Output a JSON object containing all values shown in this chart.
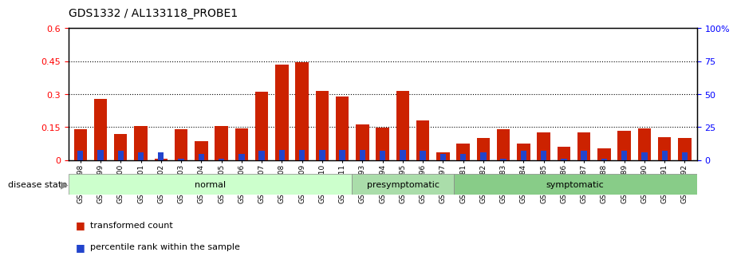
{
  "title": "GDS1332 / AL133118_PROBE1",
  "samples": [
    "GSM30698",
    "GSM30699",
    "GSM30700",
    "GSM30701",
    "GSM30702",
    "GSM30703",
    "GSM30704",
    "GSM30705",
    "GSM30706",
    "GSM30707",
    "GSM30708",
    "GSM30709",
    "GSM30710",
    "GSM30711",
    "GSM30693",
    "GSM30694",
    "GSM30695",
    "GSM30696",
    "GSM30697",
    "GSM30681",
    "GSM30682",
    "GSM30683",
    "GSM30684",
    "GSM30685",
    "GSM30686",
    "GSM30687",
    "GSM30688",
    "GSM30689",
    "GSM30690",
    "GSM30691",
    "GSM30692"
  ],
  "transformed_count": [
    0.14,
    0.28,
    0.12,
    0.155,
    0.005,
    0.14,
    0.085,
    0.155,
    0.145,
    0.31,
    0.435,
    0.445,
    0.315,
    0.29,
    0.162,
    0.148,
    0.315,
    0.18,
    0.035,
    0.075,
    0.1,
    0.14,
    0.075,
    0.125,
    0.06,
    0.125,
    0.055,
    0.135,
    0.145,
    0.105,
    0.1
  ],
  "percentile_rank_pct": [
    7.0,
    8.0,
    7.0,
    6.0,
    6.0,
    1.0,
    5.0,
    1.0,
    5.0,
    7.0,
    8.0,
    8.0,
    8.0,
    8.0,
    8.0,
    7.0,
    8.0,
    7.0,
    5.0,
    5.0,
    6.0,
    1.0,
    7.0,
    7.0,
    1.0,
    7.0,
    1.0,
    7.0,
    6.0,
    7.0,
    6.0
  ],
  "groups": {
    "normal": {
      "start": 0,
      "end": 13
    },
    "presymptomatic": {
      "start": 14,
      "end": 18
    },
    "symptomatic": {
      "start": 19,
      "end": 30
    }
  },
  "group_label_list": [
    "normal",
    "presymptomatic",
    "symptomatic"
  ],
  "group_color_normal": "#ccffcc",
  "group_color_presymptomatic": "#aaddaa",
  "group_color_symptomatic": "#88cc88",
  "bar_color_red": "#cc2200",
  "bar_color_blue": "#2244cc",
  "ylim_left": [
    0,
    0.6
  ],
  "ylim_right": [
    0,
    100
  ],
  "yticks_left": [
    0,
    0.15,
    0.3,
    0.45,
    0.6
  ],
  "yticks_right": [
    0,
    25,
    50,
    75,
    100
  ],
  "ytick_labels_left": [
    "0",
    "0.15",
    "0.3",
    "0.45",
    "0.6"
  ],
  "ytick_labels_right": [
    "0",
    "25",
    "50",
    "75",
    "100%"
  ],
  "background_color": "#ffffff"
}
